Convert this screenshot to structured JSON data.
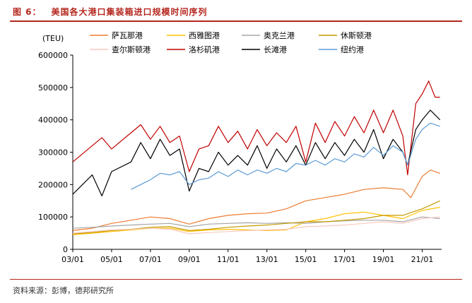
{
  "figure": {
    "label": "图 6：",
    "title": "美国各大港口集装箱进口规模时间序列",
    "source": "资料来源：彭博，德邦研究所"
  },
  "chart_data": {
    "type": "line",
    "unit": "(TEU)",
    "x_ticks": [
      "03/01",
      "05/01",
      "07/01",
      "09/01",
      "11/01",
      "13/01",
      "15/01",
      "17/01",
      "19/01",
      "21/01"
    ],
    "x_range": [
      "2003-01",
      "2022-01"
    ],
    "ylim": [
      0,
      600000
    ],
    "y_ticks": [
      0,
      100000,
      200000,
      300000,
      400000,
      500000,
      600000
    ],
    "y_tick_labels": [
      "0",
      "100000",
      "200000",
      "300000",
      "400000",
      "500000",
      "600000"
    ],
    "grid": false,
    "legend_position": "top",
    "series": [
      {
        "name": "萨瓦那港",
        "color": "#ed7d31",
        "points": [
          [
            "2003-01",
            58000
          ],
          [
            "2004-01",
            65000
          ],
          [
            "2005-01",
            80000
          ],
          [
            "2006-01",
            90000
          ],
          [
            "2007-01",
            100000
          ],
          [
            "2008-01",
            95000
          ],
          [
            "2009-01",
            78000
          ],
          [
            "2010-01",
            95000
          ],
          [
            "2011-01",
            105000
          ],
          [
            "2012-01",
            110000
          ],
          [
            "2013-01",
            112000
          ],
          [
            "2014-01",
            125000
          ],
          [
            "2015-01",
            150000
          ],
          [
            "2016-01",
            160000
          ],
          [
            "2017-01",
            170000
          ],
          [
            "2018-01",
            185000
          ],
          [
            "2019-01",
            190000
          ],
          [
            "2020-01",
            185000
          ],
          [
            "2020-06",
            160000
          ],
          [
            "2021-01",
            225000
          ],
          [
            "2021-06",
            245000
          ],
          [
            "2021-12",
            235000
          ]
        ]
      },
      {
        "name": "西雅图港",
        "color": "#ffc000",
        "points": [
          [
            "2003-01",
            45000
          ],
          [
            "2004-01",
            50000
          ],
          [
            "2005-01",
            55000
          ],
          [
            "2006-01",
            60000
          ],
          [
            "2007-01",
            65000
          ],
          [
            "2008-01",
            65000
          ],
          [
            "2009-01",
            55000
          ],
          [
            "2010-01",
            60000
          ],
          [
            "2011-01",
            62000
          ],
          [
            "2012-01",
            60000
          ],
          [
            "2013-01",
            58000
          ],
          [
            "2014-01",
            60000
          ],
          [
            "2015-01",
            85000
          ],
          [
            "2016-01",
            95000
          ],
          [
            "2017-01",
            110000
          ],
          [
            "2018-01",
            115000
          ],
          [
            "2019-01",
            105000
          ],
          [
            "2020-01",
            95000
          ],
          [
            "2021-01",
            120000
          ],
          [
            "2021-12",
            130000
          ]
        ]
      },
      {
        "name": "奥克兰港",
        "color": "#a5a5a5",
        "points": [
          [
            "2003-01",
            65000
          ],
          [
            "2004-01",
            68000
          ],
          [
            "2005-01",
            72000
          ],
          [
            "2006-01",
            75000
          ],
          [
            "2007-01",
            78000
          ],
          [
            "2008-01",
            80000
          ],
          [
            "2009-01",
            70000
          ],
          [
            "2010-01",
            78000
          ],
          [
            "2011-01",
            80000
          ],
          [
            "2012-01",
            82000
          ],
          [
            "2013-01",
            80000
          ],
          [
            "2014-01",
            82000
          ],
          [
            "2015-01",
            80000
          ],
          [
            "2016-01",
            85000
          ],
          [
            "2017-01",
            88000
          ],
          [
            "2018-01",
            90000
          ],
          [
            "2019-01",
            90000
          ],
          [
            "2020-01",
            85000
          ],
          [
            "2021-01",
            100000
          ],
          [
            "2021-12",
            95000
          ]
        ]
      },
      {
        "name": "休斯顿港",
        "color": "#c49a00",
        "points": [
          [
            "2003-01",
            48000
          ],
          [
            "2004-01",
            52000
          ],
          [
            "2005-01",
            58000
          ],
          [
            "2006-01",
            62000
          ],
          [
            "2007-01",
            68000
          ],
          [
            "2008-01",
            70000
          ],
          [
            "2009-01",
            58000
          ],
          [
            "2010-01",
            62000
          ],
          [
            "2011-01",
            68000
          ],
          [
            "2012-01",
            72000
          ],
          [
            "2013-01",
            75000
          ],
          [
            "2014-01",
            80000
          ],
          [
            "2015-01",
            85000
          ],
          [
            "2016-01",
            85000
          ],
          [
            "2017-01",
            90000
          ],
          [
            "2018-01",
            95000
          ],
          [
            "2019-01",
            105000
          ],
          [
            "2020-01",
            105000
          ],
          [
            "2021-01",
            125000
          ],
          [
            "2021-12",
            150000
          ]
        ]
      },
      {
        "name": "查尔斯顿港",
        "color": "#f8c9c0",
        "points": [
          [
            "2003-01",
            50000
          ],
          [
            "2004-01",
            55000
          ],
          [
            "2005-01",
            60000
          ],
          [
            "2006-01",
            62000
          ],
          [
            "2007-01",
            65000
          ],
          [
            "2008-01",
            62000
          ],
          [
            "2009-01",
            48000
          ],
          [
            "2010-01",
            52000
          ],
          [
            "2011-01",
            55000
          ],
          [
            "2012-01",
            58000
          ],
          [
            "2013-01",
            60000
          ],
          [
            "2014-01",
            62000
          ],
          [
            "2015-01",
            70000
          ],
          [
            "2016-01",
            72000
          ],
          [
            "2017-01",
            75000
          ],
          [
            "2018-01",
            80000
          ],
          [
            "2019-01",
            85000
          ],
          [
            "2020-01",
            80000
          ],
          [
            "2021-01",
            95000
          ],
          [
            "2021-12",
            100000
          ]
        ]
      },
      {
        "name": "洛杉矶港",
        "color": "#c00000",
        "points": [
          [
            "2003-01",
            270000
          ],
          [
            "2004-01",
            320000
          ],
          [
            "2004-07",
            345000
          ],
          [
            "2005-01",
            310000
          ],
          [
            "2006-01",
            360000
          ],
          [
            "2006-07",
            385000
          ],
          [
            "2007-01",
            340000
          ],
          [
            "2007-07",
            380000
          ],
          [
            "2008-01",
            330000
          ],
          [
            "2008-07",
            350000
          ],
          [
            "2009-01",
            240000
          ],
          [
            "2009-07",
            310000
          ],
          [
            "2010-01",
            320000
          ],
          [
            "2010-07",
            380000
          ],
          [
            "2011-01",
            330000
          ],
          [
            "2011-07",
            365000
          ],
          [
            "2012-01",
            310000
          ],
          [
            "2012-07",
            370000
          ],
          [
            "2013-01",
            320000
          ],
          [
            "2013-07",
            360000
          ],
          [
            "2014-01",
            330000
          ],
          [
            "2014-07",
            380000
          ],
          [
            "2015-01",
            270000
          ],
          [
            "2015-07",
            390000
          ],
          [
            "2016-01",
            330000
          ],
          [
            "2016-07",
            395000
          ],
          [
            "2017-01",
            350000
          ],
          [
            "2017-07",
            410000
          ],
          [
            "2018-01",
            360000
          ],
          [
            "2018-07",
            430000
          ],
          [
            "2019-01",
            360000
          ],
          [
            "2019-07",
            430000
          ],
          [
            "2020-01",
            350000
          ],
          [
            "2020-04",
            230000
          ],
          [
            "2020-09",
            450000
          ],
          [
            "2021-01",
            480000
          ],
          [
            "2021-05",
            520000
          ],
          [
            "2021-09",
            470000
          ],
          [
            "2021-12",
            470000
          ]
        ]
      },
      {
        "name": "长滩港",
        "color": "#000000",
        "points": [
          [
            "2003-01",
            170000
          ],
          [
            "2004-01",
            230000
          ],
          [
            "2004-07",
            165000
          ],
          [
            "2005-01",
            240000
          ],
          [
            "2006-01",
            270000
          ],
          [
            "2006-07",
            330000
          ],
          [
            "2007-01",
            280000
          ],
          [
            "2007-07",
            340000
          ],
          [
            "2008-01",
            290000
          ],
          [
            "2008-07",
            310000
          ],
          [
            "2009-01",
            180000
          ],
          [
            "2009-07",
            250000
          ],
          [
            "2010-01",
            240000
          ],
          [
            "2010-07",
            300000
          ],
          [
            "2011-01",
            260000
          ],
          [
            "2011-07",
            290000
          ],
          [
            "2012-01",
            260000
          ],
          [
            "2012-07",
            320000
          ],
          [
            "2013-01",
            250000
          ],
          [
            "2013-07",
            310000
          ],
          [
            "2014-01",
            270000
          ],
          [
            "2014-07",
            320000
          ],
          [
            "2015-01",
            260000
          ],
          [
            "2015-07",
            330000
          ],
          [
            "2016-01",
            280000
          ],
          [
            "2016-07",
            330000
          ],
          [
            "2017-01",
            290000
          ],
          [
            "2017-07",
            340000
          ],
          [
            "2018-01",
            300000
          ],
          [
            "2018-07",
            370000
          ],
          [
            "2019-01",
            280000
          ],
          [
            "2019-07",
            340000
          ],
          [
            "2020-01",
            300000
          ],
          [
            "2020-04",
            260000
          ],
          [
            "2020-09",
            370000
          ],
          [
            "2021-01",
            400000
          ],
          [
            "2021-06",
            430000
          ],
          [
            "2021-12",
            400000
          ]
        ]
      },
      {
        "name": "纽约港",
        "color": "#5b9bd5",
        "points": [
          [
            "2006-01",
            185000
          ],
          [
            "2006-07",
            200000
          ],
          [
            "2007-01",
            215000
          ],
          [
            "2007-07",
            235000
          ],
          [
            "2008-01",
            230000
          ],
          [
            "2008-07",
            240000
          ],
          [
            "2009-01",
            200000
          ],
          [
            "2009-07",
            215000
          ],
          [
            "2010-01",
            220000
          ],
          [
            "2010-07",
            240000
          ],
          [
            "2011-01",
            225000
          ],
          [
            "2011-07",
            245000
          ],
          [
            "2012-01",
            230000
          ],
          [
            "2012-07",
            245000
          ],
          [
            "2013-01",
            235000
          ],
          [
            "2013-07",
            250000
          ],
          [
            "2014-01",
            240000
          ],
          [
            "2014-07",
            265000
          ],
          [
            "2015-01",
            260000
          ],
          [
            "2015-07",
            275000
          ],
          [
            "2016-01",
            260000
          ],
          [
            "2016-07",
            280000
          ],
          [
            "2017-01",
            270000
          ],
          [
            "2017-07",
            295000
          ],
          [
            "2018-01",
            285000
          ],
          [
            "2018-07",
            315000
          ],
          [
            "2019-01",
            290000
          ],
          [
            "2019-07",
            320000
          ],
          [
            "2020-01",
            300000
          ],
          [
            "2020-04",
            260000
          ],
          [
            "2020-09",
            340000
          ],
          [
            "2021-01",
            370000
          ],
          [
            "2021-06",
            390000
          ],
          [
            "2021-12",
            380000
          ]
        ]
      }
    ]
  }
}
